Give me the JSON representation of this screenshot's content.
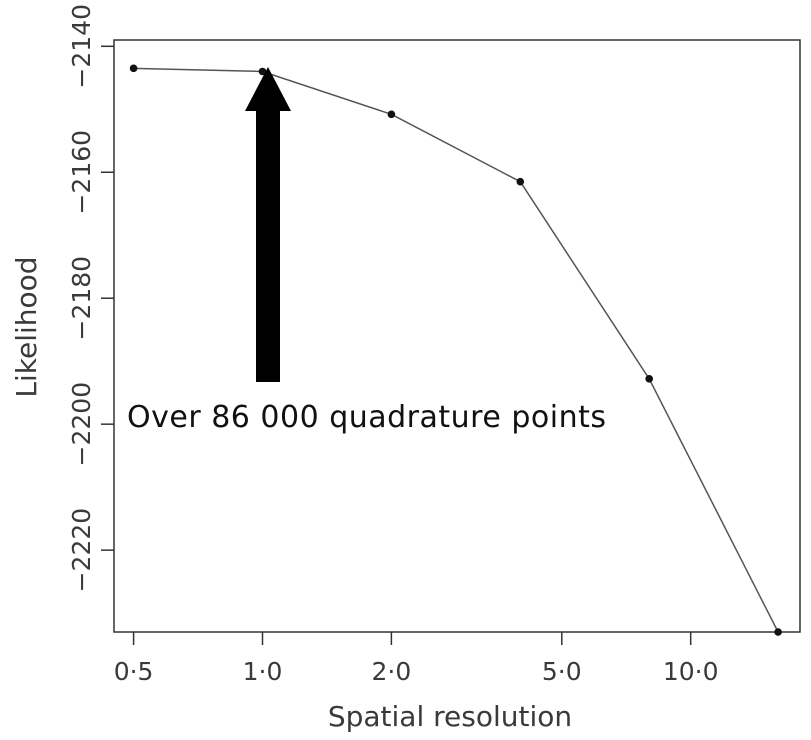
{
  "chart_data": {
    "type": "line",
    "title": "",
    "xlabel": "Spatial resolution",
    "ylabel": "Likelihood",
    "x_scale": "log",
    "x_ticks": [
      0.5,
      1.0,
      2.0,
      5.0,
      10.0
    ],
    "x_tick_labels": [
      "0·5",
      "1·0",
      "2·0",
      "5·0",
      "10·0"
    ],
    "y_ticks": [
      -2140,
      -2160,
      -2180,
      -2200,
      -2220
    ],
    "y_tick_labels": [
      "−2140",
      "−2160",
      "−2180",
      "−2200",
      "−2220"
    ],
    "xlim": [
      0.45,
      18
    ],
    "ylim": [
      -2233,
      -2139
    ],
    "series": [
      {
        "x": [
          0.5,
          1.0,
          2.0,
          4.0,
          8.0,
          16.0
        ],
        "y": [
          -2143.5,
          -2144.0,
          -2150.8,
          -2161.5,
          -2192.8,
          -2233.0
        ]
      }
    ],
    "grid": false,
    "legend": "none",
    "colors": {
      "line": "#555555",
      "marker": "#111111",
      "arrow": "#000000"
    },
    "annotations": [
      {
        "text": "Over 86 000 quadrature points",
        "points_to_x": 1.0
      }
    ]
  }
}
